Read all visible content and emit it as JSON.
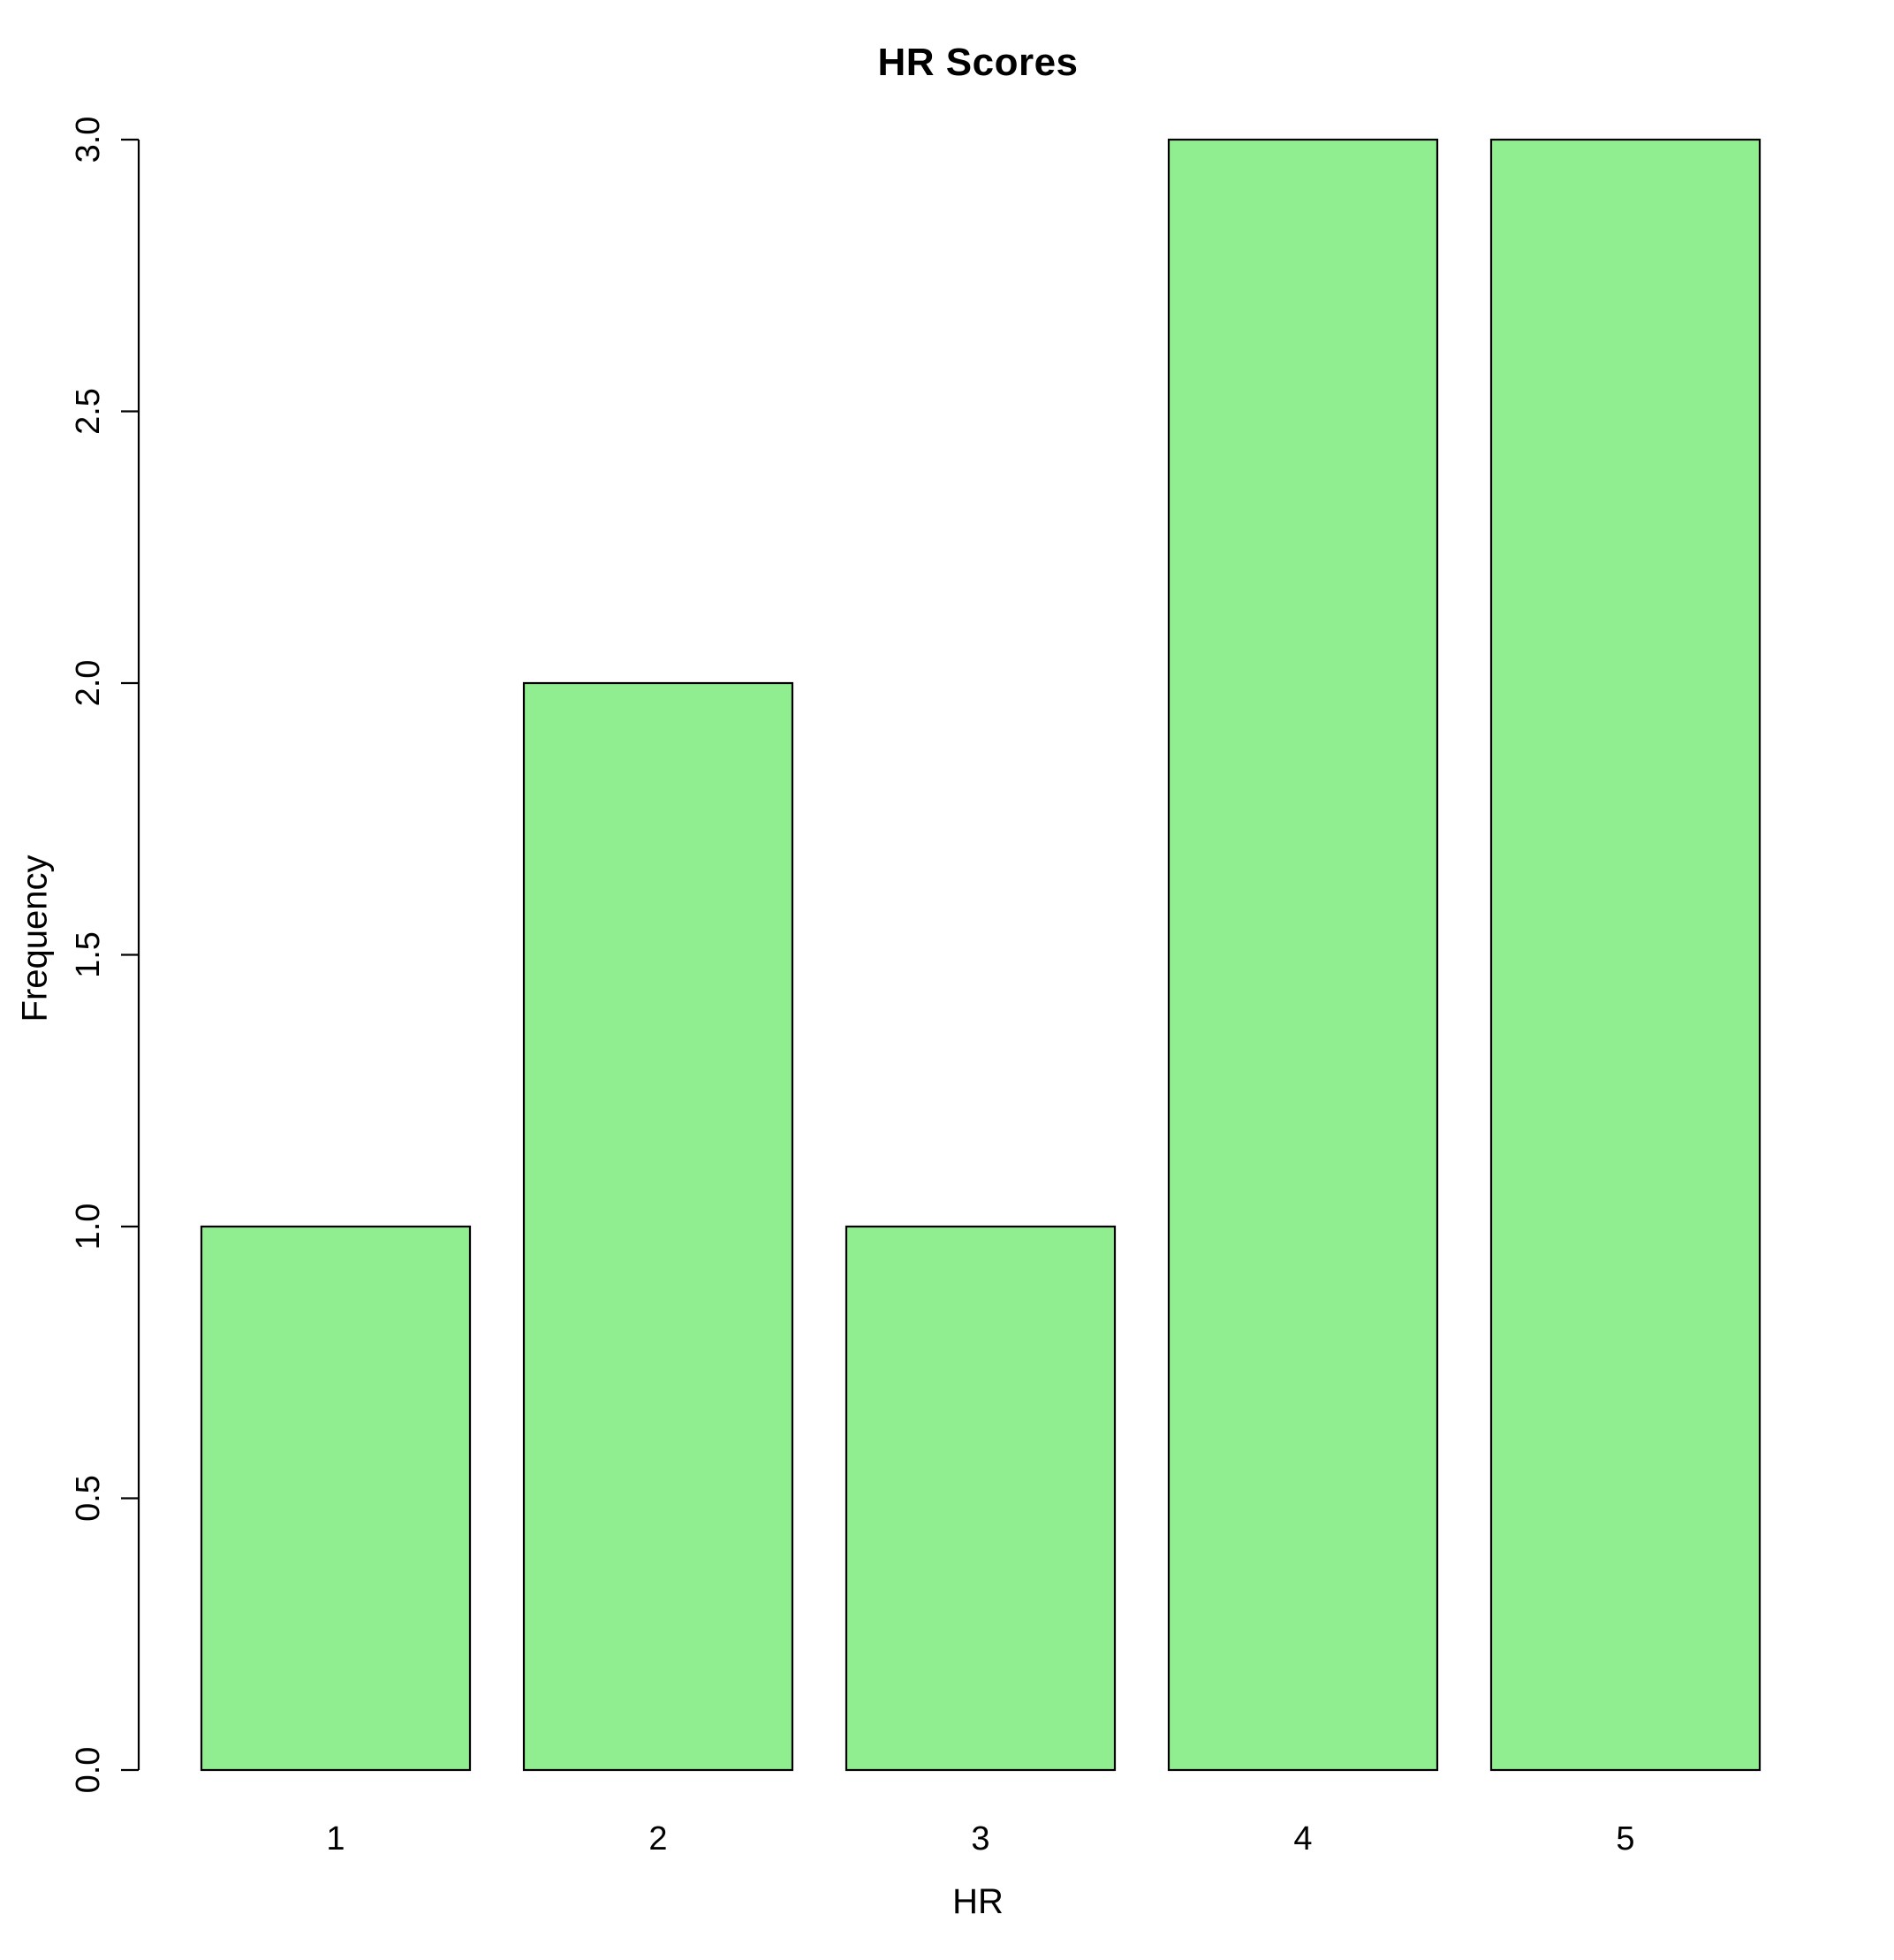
{
  "chart_data": {
    "type": "bar",
    "title": "HR Scores",
    "xlabel": "HR",
    "ylabel": "Frequency",
    "categories": [
      "1",
      "2",
      "3",
      "4",
      "5"
    ],
    "values": [
      1,
      2,
      1,
      3,
      3
    ],
    "ylim": [
      0,
      3
    ],
    "yticks": [
      "0.0",
      "0.5",
      "1.0",
      "1.5",
      "2.0",
      "2.5",
      "3.0"
    ],
    "bar_color": "#90EE90",
    "bar_border_color": "#000000",
    "axis_color": "#000000",
    "grid": false,
    "legend_position": "none"
  }
}
